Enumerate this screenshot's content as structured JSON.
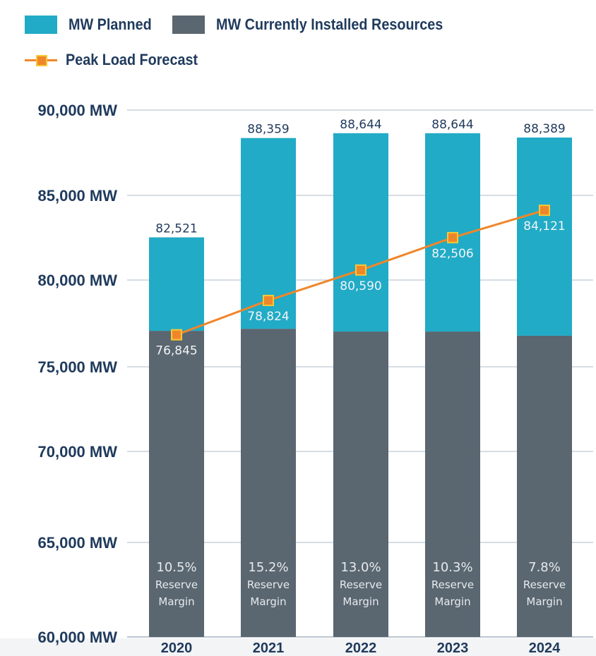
{
  "legend": {
    "planned": {
      "label": "MW Planned",
      "color": "#21abc7"
    },
    "installed": {
      "label": "MW Currently Installed Resources",
      "color": "#5a6670"
    },
    "peak": {
      "label": "Peak Load Forecast",
      "color": "#f0862a",
      "marker_border": "#f7c934"
    }
  },
  "chart_data": {
    "type": "bar",
    "stacked": true,
    "title": "",
    "xlabel": "",
    "ylabel": "",
    "ylim": [
      60000,
      90000
    ],
    "yticks": [
      60000,
      65000,
      70000,
      75000,
      80000,
      85000,
      90000
    ],
    "ytick_labels": [
      "60,000 MW",
      "65,000 MW",
      "70,000 MW",
      "75,000 MW",
      "80,000 MW",
      "85,000 MW",
      "90,000 MW"
    ],
    "grid": true,
    "legend_position": "top-left",
    "categories": [
      "2020",
      "2021",
      "2022",
      "2023",
      "2024"
    ],
    "series": [
      {
        "name": "MW Currently Installed Resources",
        "type": "bar",
        "values": [
          77070,
          77190,
          77030,
          77030,
          76790
        ]
      },
      {
        "name": "MW Planned",
        "type": "bar",
        "values": [
          5451,
          11169,
          11614,
          11614,
          11599
        ]
      },
      {
        "name": "Peak Load Forecast",
        "type": "line",
        "values": [
          76845,
          78824,
          80590,
          82506,
          84121
        ]
      }
    ],
    "totals": [
      82521,
      88359,
      88644,
      88644,
      88389
    ],
    "total_labels": [
      "82,521",
      "88,359",
      "88,644",
      "88,644",
      "88,389"
    ],
    "peak_labels": [
      "76,845",
      "78,824",
      "80,590",
      "82,506",
      "84,121"
    ],
    "reserve_margins": [
      "10.5%",
      "15.2%",
      "13.0%",
      "10.3%",
      "7.8%"
    ],
    "reserve_margin_text": [
      "Reserve",
      "Margin"
    ]
  }
}
